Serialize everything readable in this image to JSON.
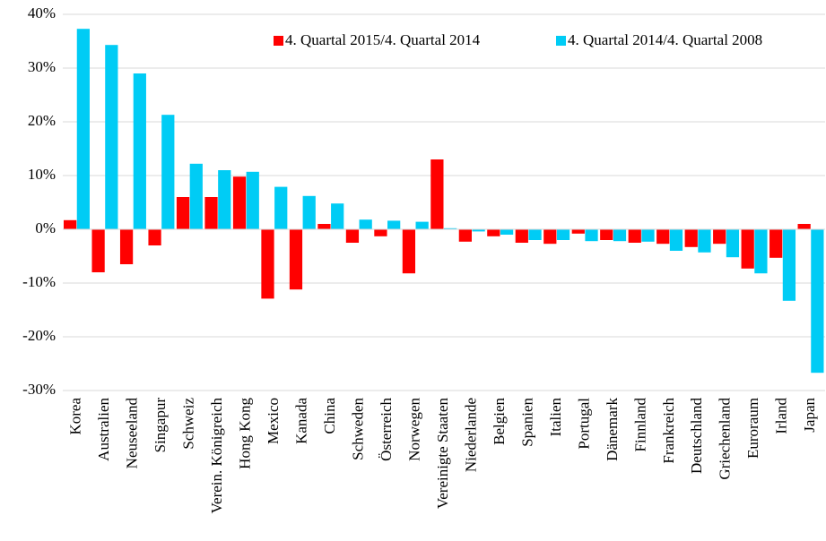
{
  "chart_data": {
    "type": "bar",
    "categories": [
      "Korea",
      "Australien",
      "Neuseeland",
      "Singapur",
      "Schweiz",
      "Verein. Königreich",
      "Hong Kong",
      "Mexico",
      "Kanada",
      "China",
      "Schweden",
      "Österreich",
      "Norwegen",
      "Vereinigte Staaten",
      "Niederlande",
      "Belgien",
      "Spanien",
      "Italien",
      "Portugal",
      "Dänemark",
      "Finnland",
      "Frankreich",
      "Deutschland",
      "Griechenland",
      "Euroraum",
      "Irland",
      "Japan"
    ],
    "series": [
      {
        "name": "4. Quartal 2015/4. Quartal 2014",
        "color": "#ff0000",
        "values": [
          1.7,
          -8.0,
          -6.5,
          -3.0,
          6.0,
          6.0,
          9.8,
          -12.9,
          -11.2,
          1.0,
          -2.5,
          -1.3,
          -8.2,
          13.0,
          -2.3,
          -1.3,
          -2.5,
          -2.7,
          -0.8,
          -2.0,
          -2.5,
          -2.7,
          -3.3,
          -2.7,
          -7.3,
          -5.3,
          1.0
        ]
      },
      {
        "name": "4. Quartal 2014/4. Quartal 2008",
        "color": "#00ccf5",
        "values": [
          37.3,
          34.3,
          29.0,
          21.3,
          12.2,
          11.0,
          10.7,
          7.9,
          6.2,
          4.8,
          1.8,
          1.6,
          1.4,
          0.2,
          -0.4,
          -1.0,
          -2.0,
          -2.0,
          -2.2,
          -2.2,
          -2.3,
          -4.0,
          -4.3,
          -5.2,
          -8.2,
          -13.3,
          -26.7
        ]
      }
    ],
    "ylim": [
      -30,
      40
    ],
    "yticks": [
      {
        "value": -30,
        "label": "-30%"
      },
      {
        "value": -20,
        "label": "-20%"
      },
      {
        "value": -10,
        "label": "-10%"
      },
      {
        "value": 0,
        "label": "0%"
      },
      {
        "value": 10,
        "label": "10%"
      },
      {
        "value": 20,
        "label": "20%"
      },
      {
        "value": 30,
        "label": "30%"
      },
      {
        "value": 40,
        "label": "40%"
      }
    ],
    "grid": true,
    "legend": "top-right"
  }
}
